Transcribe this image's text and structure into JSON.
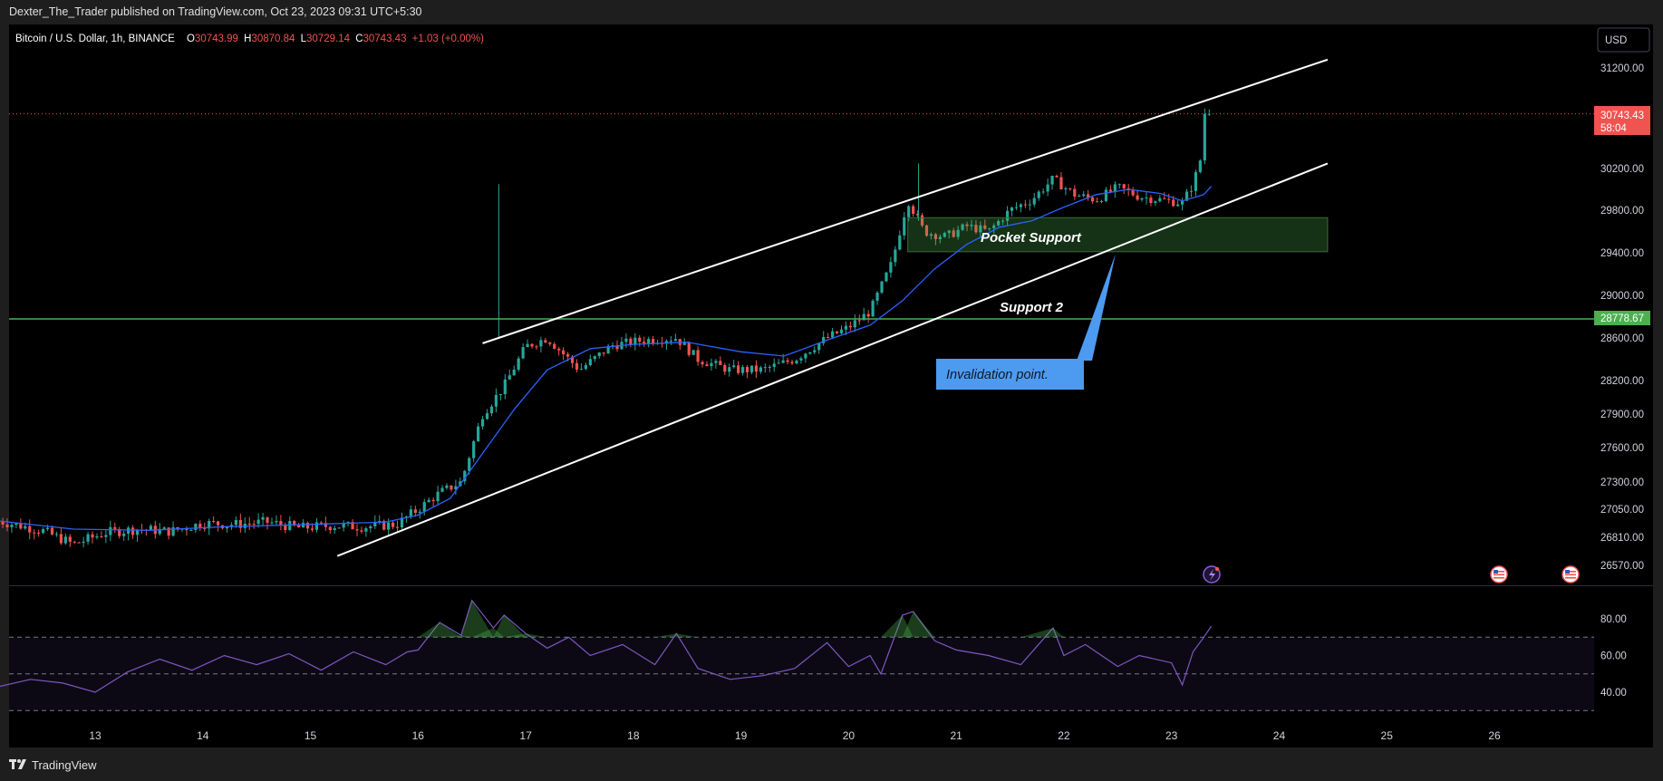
{
  "header": {
    "published": "Dexter_The_Trader published on TradingView.com, Oct 23, 2023 09:31 UTC+5:30"
  },
  "footer": {
    "brand": "TradingView"
  },
  "currency_button": "USD",
  "legend": {
    "symbol": "Bitcoin / U.S. Dollar, 1h, BINANCE",
    "o_label": "O",
    "o_value": "30743.99",
    "h_label": "H",
    "h_value": "30870.84",
    "l_label": "L",
    "l_value": "30729.14",
    "c_label": "C",
    "c_value": "30743.43",
    "change": "+1.03 (+0.00%)"
  },
  "price_badge": {
    "price": "30743.43",
    "countdown": "58:04"
  },
  "support_badge": "28778.67",
  "annotations": {
    "pocket": "Pocket Support",
    "support2": "Support 2",
    "invalidation": "Invalidation point."
  },
  "colors": {
    "bg": "#000000",
    "up": "#26a69a",
    "down": "#ef5350",
    "ma": "#2962ff",
    "rsi": "#7e57c2",
    "support": "#4caf50",
    "badge_red": "#f05350",
    "callout": "#4d9bf0"
  },
  "chart_data": [
    {
      "type": "candlestick",
      "symbol": "Bitcoin / U.S. Dollar",
      "interval": "1h",
      "exchange": "BINANCE",
      "x_ticks": [
        "13",
        "14",
        "15",
        "16",
        "17",
        "18",
        "19",
        "20",
        "21",
        "22",
        "23",
        "24",
        "25",
        "26"
      ],
      "y_ticks": [
        "31200.00",
        "30200.00",
        "29800.00",
        "29400.00",
        "29000.00",
        "28600.00",
        "28200.00",
        "27900.00",
        "27600.00",
        "27300.00",
        "27050.00",
        "26810.00",
        "26570.00"
      ],
      "ylim": [
        26450,
        31400
      ],
      "last_price": 30743.43,
      "ohlc_last": {
        "open": 30743.99,
        "high": 30870.84,
        "low": 30729.14,
        "close": 30743.43
      },
      "horizontal_support": 28778.67,
      "close_series_day_fraction": {
        "x": [
          12.1,
          12.5,
          12.8,
          13.1,
          13.4,
          13.7,
          14.0,
          14.3,
          14.6,
          14.9,
          15.2,
          15.5,
          15.8,
          16.0,
          16.2,
          16.4,
          16.6,
          16.8,
          17.0,
          17.2,
          17.5,
          17.8,
          18.1,
          18.4,
          18.6,
          18.9,
          19.2,
          19.5,
          19.8,
          20.0,
          20.2,
          20.4,
          20.55,
          20.7,
          20.9,
          21.1,
          21.3,
          21.5,
          21.7,
          21.9,
          22.1,
          22.3,
          22.5,
          22.7,
          22.9,
          23.1,
          23.2,
          23.3,
          23.35
        ],
        "close": [
          26950,
          26870,
          26750,
          26850,
          26880,
          26860,
          26930,
          26920,
          26940,
          26890,
          26910,
          26900,
          26920,
          27050,
          27200,
          27300,
          27900,
          28150,
          28520,
          28600,
          28300,
          28530,
          28580,
          28600,
          28400,
          28300,
          28300,
          28400,
          28600,
          28700,
          28850,
          29300,
          29900,
          29600,
          29550,
          29650,
          29600,
          29800,
          29900,
          30100,
          29950,
          29900,
          30020,
          29930,
          29900,
          29870,
          30050,
          30400,
          30743
        ]
      },
      "ma_series": {
        "x": [
          12.1,
          12.8,
          13.5,
          14.2,
          15.0,
          15.7,
          16.0,
          16.3,
          16.6,
          16.9,
          17.2,
          17.6,
          18.0,
          18.5,
          19.0,
          19.4,
          19.8,
          20.2,
          20.5,
          20.8,
          21.1,
          21.4,
          21.7,
          22.0,
          22.3,
          22.6,
          22.9,
          23.1,
          23.3,
          23.37
        ],
        "y": [
          26950,
          26880,
          26870,
          26900,
          26920,
          26940,
          27000,
          27150,
          27550,
          27950,
          28300,
          28500,
          28540,
          28560,
          28470,
          28430,
          28580,
          28720,
          28950,
          29250,
          29480,
          29640,
          29700,
          29830,
          29950,
          30000,
          29960,
          29890,
          29950,
          30030
        ]
      },
      "channel": {
        "upper": [
          [
            16.6,
            28550
          ],
          [
            24.45,
            31280
          ]
        ],
        "lower": [
          [
            15.25,
            26650
          ],
          [
            24.45,
            30250
          ]
        ]
      },
      "zone": {
        "label": "Pocket Support",
        "x": [
          20.55,
          24.45
        ],
        "y": [
          29410,
          29730
        ]
      }
    },
    {
      "type": "line",
      "indicator": "RSI",
      "y_ticks": [
        "80.00",
        "60.00",
        "40.00"
      ],
      "ylim": [
        24,
        96
      ],
      "bands": {
        "upper": 70,
        "middle": 50,
        "lower": 30
      },
      "x": [
        12.1,
        12.4,
        12.7,
        13.0,
        13.3,
        13.6,
        13.9,
        14.2,
        14.5,
        14.8,
        15.1,
        15.4,
        15.7,
        15.9,
        16.0,
        16.2,
        16.4,
        16.5,
        16.7,
        16.8,
        17.0,
        17.2,
        17.4,
        17.6,
        17.9,
        18.2,
        18.4,
        18.6,
        18.9,
        19.2,
        19.5,
        19.8,
        20.0,
        20.2,
        20.3,
        20.5,
        20.6,
        20.8,
        21.0,
        21.3,
        21.6,
        21.9,
        22.0,
        22.2,
        22.4,
        22.5,
        22.7,
        23.0,
        23.1,
        23.2,
        23.3,
        23.37
      ],
      "y": [
        43,
        47,
        45,
        40,
        51,
        58,
        52,
        60,
        55,
        61,
        52,
        62,
        55,
        62,
        63,
        78,
        71,
        90,
        75,
        82,
        72,
        64,
        70,
        60,
        66,
        55,
        72,
        53,
        47,
        49,
        53,
        67,
        54,
        60,
        50,
        82,
        84,
        68,
        63,
        60,
        55,
        75,
        60,
        66,
        58,
        54,
        60,
        56,
        44,
        62,
        70,
        76
      ]
    }
  ]
}
